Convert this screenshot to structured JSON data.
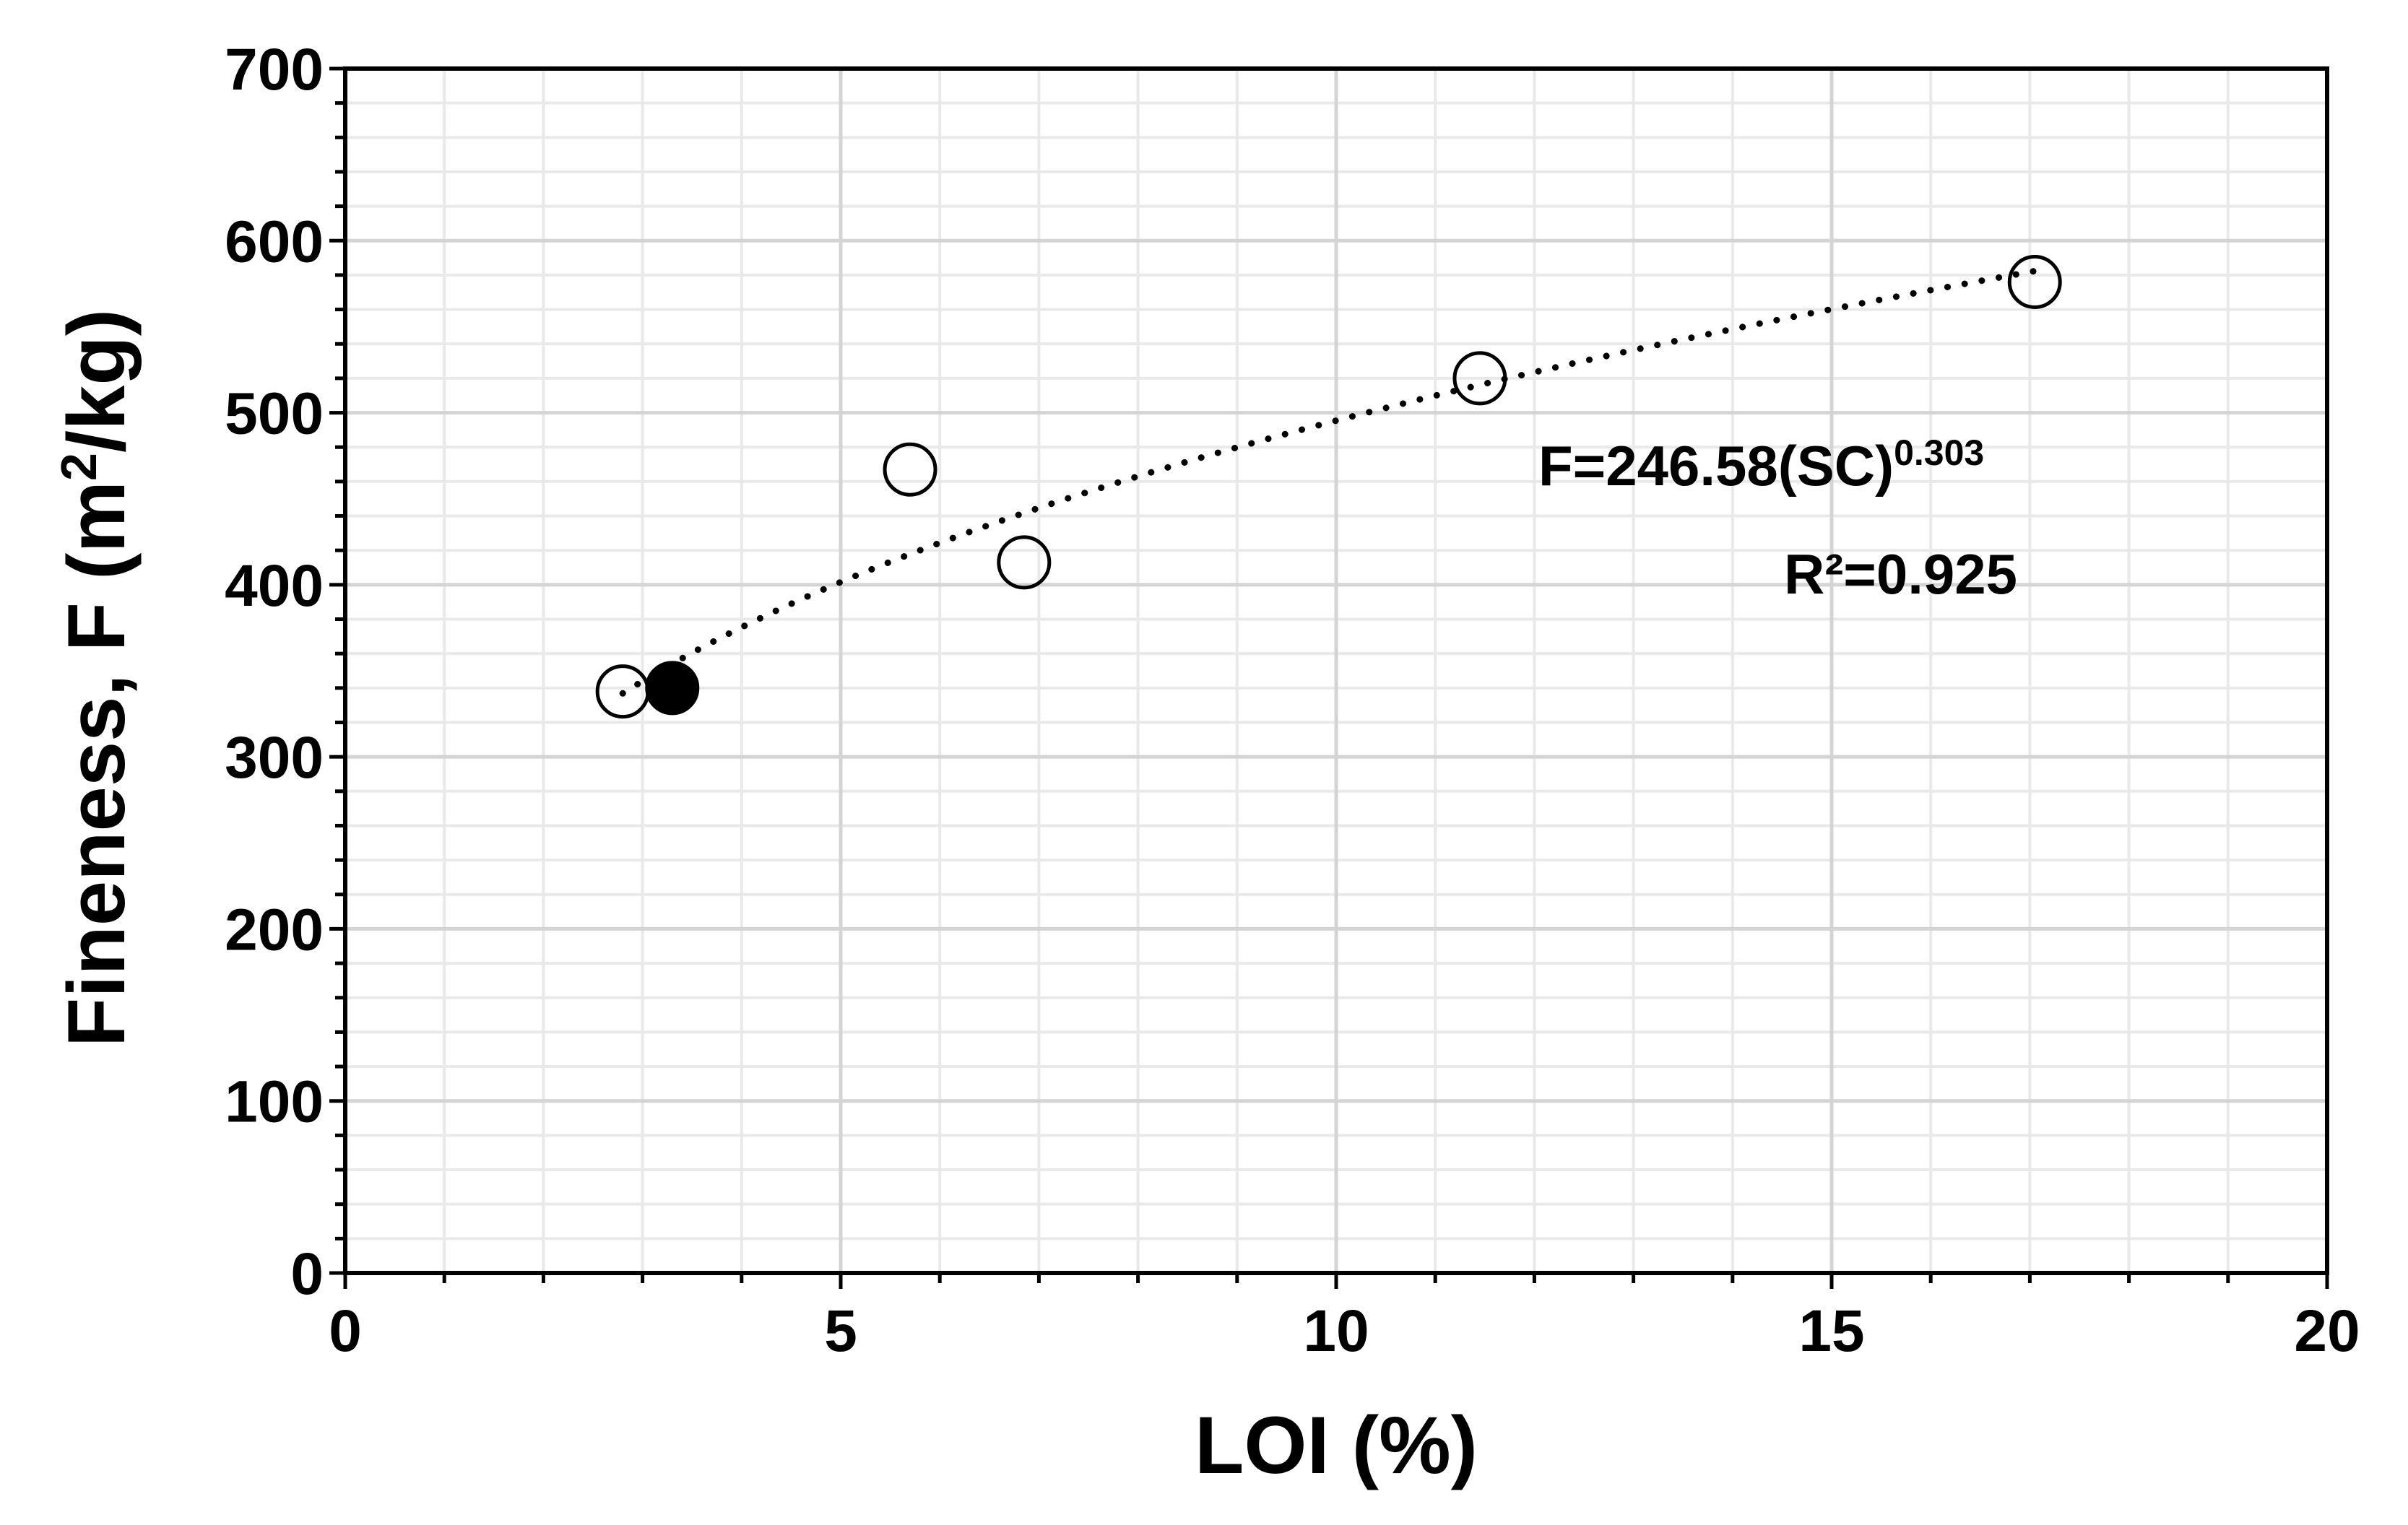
{
  "chart_data": {
    "type": "scatter",
    "xlabel": "LOI (%)",
    "ylabel_main": "Fineness, F (m",
    "ylabel_sup": "2",
    "ylabel_end": "/kg)",
    "xlim": [
      0,
      20
    ],
    "ylim": [
      0,
      700
    ],
    "x_ticks": [
      0,
      5,
      10,
      15,
      20
    ],
    "x_tick_labels": [
      "0",
      "5",
      "10",
      "15",
      "20"
    ],
    "y_ticks": [
      0,
      100,
      200,
      300,
      400,
      500,
      600,
      700
    ],
    "y_tick_labels": [
      "0",
      "100",
      "200",
      "300",
      "400",
      "500",
      "600",
      "700"
    ],
    "grid": true,
    "series": [
      {
        "marker": "open-circle",
        "x": [
          2.8,
          5.7,
          6.85,
          11.45,
          17.05
        ],
        "y": [
          338,
          467,
          413,
          520,
          576
        ]
      },
      {
        "marker": "filled-circle",
        "x": [
          3.3
        ],
        "y": [
          340
        ]
      }
    ],
    "trendline": {
      "style": "dotted",
      "model": "power",
      "coefficient": 246.58,
      "exponent": 0.303,
      "x_range": [
        2.8,
        17.05
      ]
    },
    "annotations": {
      "equation_main": "F=246.58(SC)",
      "equation_sup": "0.303",
      "r2": "R²=0.925"
    },
    "colors": {
      "axis": "#000000",
      "grid_major": "#d4d4d4",
      "grid_minor": "#e9e9e9",
      "marker_fill_open": "#ffffff",
      "marker_fill_filled": "#000000"
    }
  }
}
